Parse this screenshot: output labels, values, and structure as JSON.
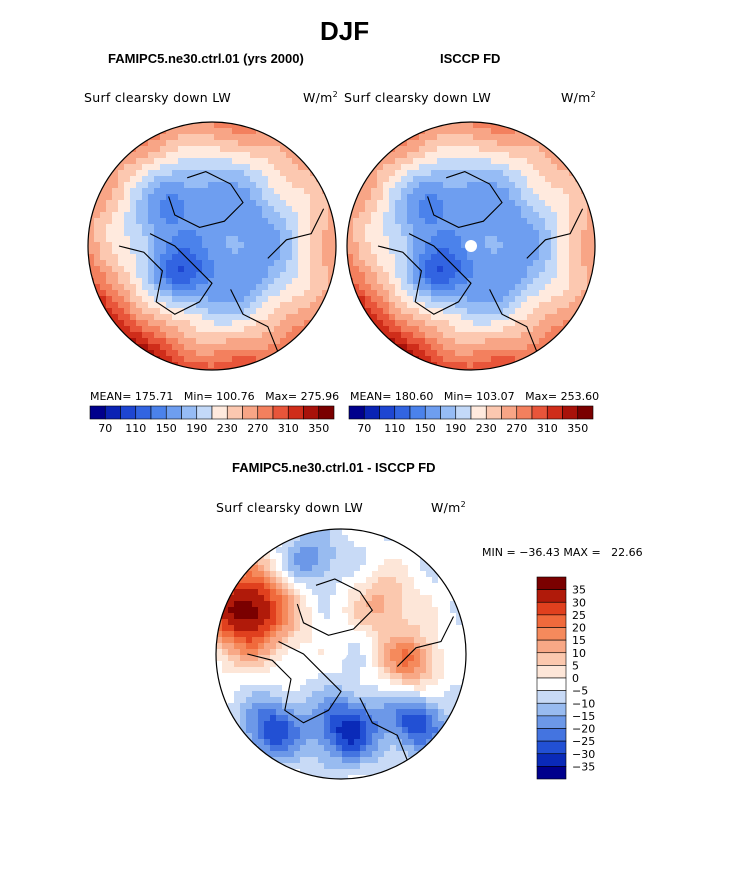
{
  "page": {
    "title": "DJF",
    "top_left_title": "FAMIPC5.ne30.ctrl.01 (yrs 2000)",
    "top_right_title": "ISCCP FD",
    "bottom_title": "FAMIPC5.ne30.ctrl.01 - ISCCP FD"
  },
  "chart_data": [
    {
      "type": "heatmap",
      "projection": "north-polar-stereographic",
      "title": "FAMIPC5.ne30.ctrl.01 (yrs 2000)",
      "variable": "Surf clearsky down LW",
      "units_base": "W/m",
      "units_exp": "2",
      "stats": {
        "mean_label": "MEAN=",
        "mean": "175.71",
        "min_label": "Min=",
        "min": "100.76",
        "max_label": "Max=",
        "max": "275.96"
      },
      "colorbar": {
        "levels": [
          70,
          90,
          110,
          130,
          150,
          170,
          190,
          210,
          230,
          250,
          270,
          290,
          310,
          330,
          350
        ],
        "tick_labels": [
          "70",
          "110",
          "150",
          "190",
          "230",
          "270",
          "310",
          "350"
        ],
        "colors": [
          "#00008c",
          "#0a23b4",
          "#1e46d2",
          "#3264e1",
          "#4b82eb",
          "#6e9ef0",
          "#96bcf5",
          "#c3d9f8",
          "#ffeade",
          "#fcc8b0",
          "#f8a586",
          "#f3805e",
          "#e8553a",
          "#cf2d1a",
          "#a8120a",
          "#7a0000"
        ]
      }
    },
    {
      "type": "heatmap",
      "projection": "north-polar-stereographic",
      "title": "ISCCP FD",
      "variable": "Surf clearsky down LW",
      "units_base": "W/m",
      "units_exp": "2",
      "stats": {
        "mean_label": "MEAN=",
        "mean": "180.60",
        "min_label": "Min=",
        "min": "103.07",
        "max_label": "Max=",
        "max": "253.60"
      },
      "colorbar": {
        "levels": [
          70,
          90,
          110,
          130,
          150,
          170,
          190,
          210,
          230,
          250,
          270,
          290,
          310,
          330,
          350
        ],
        "tick_labels": [
          "70",
          "110",
          "150",
          "190",
          "230",
          "270",
          "310",
          "350"
        ],
        "colors": [
          "#00008c",
          "#0a23b4",
          "#1e46d2",
          "#3264e1",
          "#4b82eb",
          "#6e9ef0",
          "#96bcf5",
          "#c3d9f8",
          "#ffeade",
          "#fcc8b0",
          "#f8a586",
          "#f3805e",
          "#e8553a",
          "#cf2d1a",
          "#a8120a",
          "#7a0000"
        ]
      }
    },
    {
      "type": "heatmap",
      "projection": "north-polar-stereographic",
      "title": "FAMIPC5.ne30.ctrl.01 - ISCCP FD",
      "variable": "Surf clearsky down LW",
      "units_base": "W/m",
      "units_exp": "2",
      "stats": {
        "min_label": "MIN =",
        "min": "−36.43",
        "max_label": "MAX =",
        "max": "22.66"
      },
      "colorbar": {
        "levels": [
          35,
          30,
          25,
          20,
          15,
          10,
          5,
          0,
          -5,
          -10,
          -15,
          -20,
          -25,
          -30,
          -35
        ],
        "tick_labels": [
          "35",
          "30",
          "25",
          "20",
          "15",
          "10",
          "5",
          "0",
          "−5",
          "−10",
          "−15",
          "−20",
          "−25",
          "−30",
          "−35"
        ],
        "colors": [
          "#7a0000",
          "#b01a0a",
          "#e0401e",
          "#f06a3c",
          "#f58a5c",
          "#f8a886",
          "#fbc8ae",
          "#fde6d8",
          "#ffffff",
          "#c8daf6",
          "#98bbf0",
          "#6c98e8",
          "#4474e0",
          "#2250d4",
          "#0a2ab8",
          "#00008c"
        ]
      }
    }
  ]
}
